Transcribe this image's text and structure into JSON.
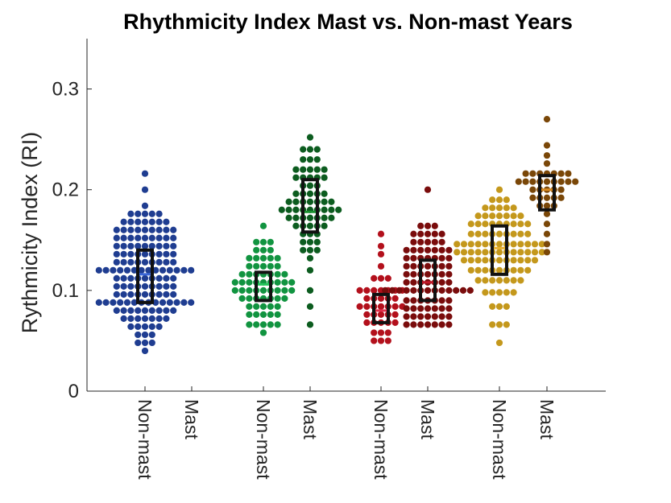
{
  "chart_data": {
    "type": "scatter",
    "subtype": "swarm-with-iqr-boxes",
    "title": "Rhythmicity Index Mast vs. Non-mast Years",
    "ylabel": "Rythmicity Index (RI)",
    "xlabel": "",
    "ylim": [
      0,
      0.35
    ],
    "yticks": [
      0,
      0.1,
      0.2,
      0.3
    ],
    "ytick_labels": [
      "0",
      "0.1",
      "0.2",
      "0.3"
    ],
    "grid": false,
    "categories": [
      "Non-mast",
      "Mast",
      "Non-mast",
      "Mast",
      "Non-mast",
      "Mast",
      "Non-mast",
      "Mast"
    ],
    "series": [
      {
        "group": 1,
        "category": "Non-mast",
        "color": "#1f3d91",
        "median_color": "#3a66d6",
        "q1": 0.088,
        "median": 0.116,
        "q3": 0.14,
        "points": [
          {
            "y": 0.04,
            "n": 1
          },
          {
            "y": 0.048,
            "n": 3
          },
          {
            "y": 0.056,
            "n": 3
          },
          {
            "y": 0.064,
            "n": 5
          },
          {
            "y": 0.072,
            "n": 7
          },
          {
            "y": 0.08,
            "n": 9
          },
          {
            "y": 0.088,
            "n": 14
          },
          {
            "y": 0.096,
            "n": 9
          },
          {
            "y": 0.104,
            "n": 9
          },
          {
            "y": 0.112,
            "n": 9
          },
          {
            "y": 0.12,
            "n": 14
          },
          {
            "y": 0.128,
            "n": 9
          },
          {
            "y": 0.136,
            "n": 9
          },
          {
            "y": 0.144,
            "n": 9
          },
          {
            "y": 0.152,
            "n": 9
          },
          {
            "y": 0.16,
            "n": 9
          },
          {
            "y": 0.168,
            "n": 7
          },
          {
            "y": 0.176,
            "n": 5
          },
          {
            "y": 0.184,
            "n": 1
          },
          {
            "y": 0.2,
            "n": 1
          },
          {
            "y": 0.216,
            "n": 1
          }
        ]
      },
      {
        "group": 1,
        "category": "Mast",
        "color": "#1f3d91",
        "median_color": "#3a66d6",
        "points": []
      },
      {
        "group": 2,
        "category": "Non-mast",
        "color": "#119440",
        "median_color": "#23c45a",
        "q1": 0.09,
        "median": 0.106,
        "q3": 0.118,
        "points": [
          {
            "y": 0.058,
            "n": 1
          },
          {
            "y": 0.066,
            "n": 5
          },
          {
            "y": 0.076,
            "n": 5
          },
          {
            "y": 0.084,
            "n": 5
          },
          {
            "y": 0.092,
            "n": 7
          },
          {
            "y": 0.1,
            "n": 9
          },
          {
            "y": 0.108,
            "n": 9
          },
          {
            "y": 0.116,
            "n": 7
          },
          {
            "y": 0.124,
            "n": 5
          },
          {
            "y": 0.132,
            "n": 5
          },
          {
            "y": 0.14,
            "n": 3
          },
          {
            "y": 0.148,
            "n": 3
          },
          {
            "y": 0.164,
            "n": 1
          }
        ]
      },
      {
        "group": 2,
        "category": "Mast",
        "color": "#0c5c1f",
        "median_color": "#18902e",
        "q1": 0.158,
        "median": 0.178,
        "q3": 0.21,
        "points": [
          {
            "y": 0.066,
            "n": 1
          },
          {
            "y": 0.084,
            "n": 1
          },
          {
            "y": 0.1,
            "n": 1
          },
          {
            "y": 0.12,
            "n": 1
          },
          {
            "y": 0.132,
            "n": 1
          },
          {
            "y": 0.14,
            "n": 3
          },
          {
            "y": 0.148,
            "n": 3
          },
          {
            "y": 0.156,
            "n": 3
          },
          {
            "y": 0.164,
            "n": 5
          },
          {
            "y": 0.172,
            "n": 7
          },
          {
            "y": 0.18,
            "n": 9
          },
          {
            "y": 0.188,
            "n": 7
          },
          {
            "y": 0.196,
            "n": 5
          },
          {
            "y": 0.204,
            "n": 3
          },
          {
            "y": 0.212,
            "n": 5
          },
          {
            "y": 0.22,
            "n": 5
          },
          {
            "y": 0.23,
            "n": 3
          },
          {
            "y": 0.24,
            "n": 3
          },
          {
            "y": 0.252,
            "n": 1
          }
        ]
      },
      {
        "group": 3,
        "category": "Non-mast",
        "color": "#b3101c",
        "median_color": "#e0304a",
        "q1": 0.068,
        "median": 0.08,
        "q3": 0.096,
        "points": [
          {
            "y": 0.05,
            "n": 3
          },
          {
            "y": 0.058,
            "n": 3
          },
          {
            "y": 0.068,
            "n": 5
          },
          {
            "y": 0.076,
            "n": 5
          },
          {
            "y": 0.084,
            "n": 7
          },
          {
            "y": 0.092,
            "n": 5
          },
          {
            "y": 0.1,
            "n": 7
          },
          {
            "y": 0.112,
            "n": 3
          },
          {
            "y": 0.124,
            "n": 1
          },
          {
            "y": 0.136,
            "n": 1
          },
          {
            "y": 0.144,
            "n": 1
          },
          {
            "y": 0.156,
            "n": 1
          }
        ]
      },
      {
        "group": 3,
        "category": "Mast",
        "color": "#7a0c0c",
        "median_color": "#c0192a",
        "q1": 0.09,
        "median": 0.108,
        "q3": 0.13,
        "points": [
          {
            "y": 0.066,
            "n": 7
          },
          {
            "y": 0.074,
            "n": 7
          },
          {
            "y": 0.082,
            "n": 7
          },
          {
            "y": 0.09,
            "n": 7
          },
          {
            "y": 0.1,
            "n": 13
          },
          {
            "y": 0.108,
            "n": 7
          },
          {
            "y": 0.116,
            "n": 7
          },
          {
            "y": 0.124,
            "n": 7
          },
          {
            "y": 0.132,
            "n": 7
          },
          {
            "y": 0.14,
            "n": 7
          },
          {
            "y": 0.148,
            "n": 5
          },
          {
            "y": 0.156,
            "n": 5
          },
          {
            "y": 0.164,
            "n": 3
          },
          {
            "y": 0.2,
            "n": 1
          }
        ]
      },
      {
        "group": 4,
        "category": "Non-mast",
        "color": "#c4981c",
        "median_color": "#e8b030",
        "q1": 0.116,
        "median": 0.142,
        "q3": 0.164,
        "points": [
          {
            "y": 0.048,
            "n": 1
          },
          {
            "y": 0.066,
            "n": 3
          },
          {
            "y": 0.084,
            "n": 3
          },
          {
            "y": 0.098,
            "n": 5
          },
          {
            "y": 0.11,
            "n": 7
          },
          {
            "y": 0.12,
            "n": 9
          },
          {
            "y": 0.13,
            "n": 11
          },
          {
            "y": 0.138,
            "n": 13
          },
          {
            "y": 0.146,
            "n": 13
          },
          {
            "y": 0.156,
            "n": 9
          },
          {
            "y": 0.166,
            "n": 9
          },
          {
            "y": 0.174,
            "n": 7
          },
          {
            "y": 0.182,
            "n": 5
          },
          {
            "y": 0.19,
            "n": 3
          },
          {
            "y": 0.2,
            "n": 1
          }
        ]
      },
      {
        "group": 4,
        "category": "Mast",
        "color": "#7a4708",
        "median_color": "#d88a22",
        "q1": 0.18,
        "median": 0.2,
        "q3": 0.214,
        "points": [
          {
            "y": 0.138,
            "n": 1
          },
          {
            "y": 0.146,
            "n": 1
          },
          {
            "y": 0.156,
            "n": 1
          },
          {
            "y": 0.166,
            "n": 1
          },
          {
            "y": 0.176,
            "n": 1
          },
          {
            "y": 0.184,
            "n": 3
          },
          {
            "y": 0.192,
            "n": 5
          },
          {
            "y": 0.2,
            "n": 5
          },
          {
            "y": 0.208,
            "n": 9
          },
          {
            "y": 0.216,
            "n": 7
          },
          {
            "y": 0.226,
            "n": 1
          },
          {
            "y": 0.234,
            "n": 1
          },
          {
            "y": 0.244,
            "n": 1
          },
          {
            "y": 0.27,
            "n": 1
          }
        ]
      }
    ]
  }
}
